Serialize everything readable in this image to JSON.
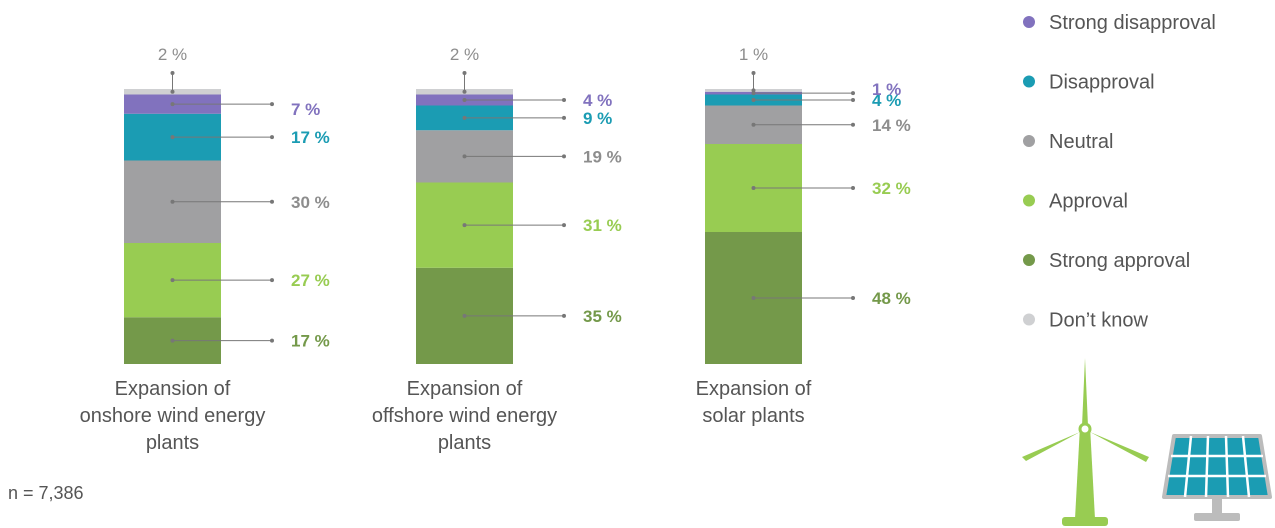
{
  "chart_data": {
    "type": "bar",
    "stacked": true,
    "categories": [
      [
        "Expansion of",
        "onshore wind energy",
        "plants"
      ],
      [
        "Expansion of",
        "offshore wind energy",
        "plants"
      ],
      [
        "Expansion of",
        "solar plants"
      ]
    ],
    "series": [
      {
        "name": "Strong approval",
        "color": "#74994a",
        "values": [
          17,
          35,
          48
        ]
      },
      {
        "name": "Approval",
        "color": "#98cc52",
        "values": [
          27,
          31,
          32
        ]
      },
      {
        "name": "Neutral",
        "color": "#a0a0a2",
        "values": [
          30,
          19,
          14
        ]
      },
      {
        "name": "Disapproval",
        "color": "#1b9cb3",
        "values": [
          17,
          9,
          4
        ]
      },
      {
        "name": "Strong disapproval",
        "color": "#8172be",
        "values": [
          7,
          4,
          1
        ]
      },
      {
        "name": "Don’t know",
        "color": "#cfd0d2",
        "values": [
          2,
          2,
          1
        ]
      }
    ],
    "value_labels": [
      [
        "17 %",
        "27 %",
        "30 %",
        "17 %",
        "7 %",
        "2 %"
      ],
      [
        "35 %",
        "31 %",
        "19 %",
        "9 %",
        "4 %",
        "2 %"
      ],
      [
        "48 %",
        "32 %",
        "14 %",
        "4 %",
        "1 %",
        "1 %"
      ]
    ],
    "legend": {
      "position": "right",
      "order": [
        "Strong disapproval",
        "Disapproval",
        "Neutral",
        "Approval",
        "Strong approval",
        "Don’t know"
      ]
    },
    "ylim": [
      0,
      100
    ],
    "grid": false
  },
  "footnote": "n = 7,386",
  "icons": [
    "wind-turbine-icon",
    "solar-panel-icon"
  ]
}
